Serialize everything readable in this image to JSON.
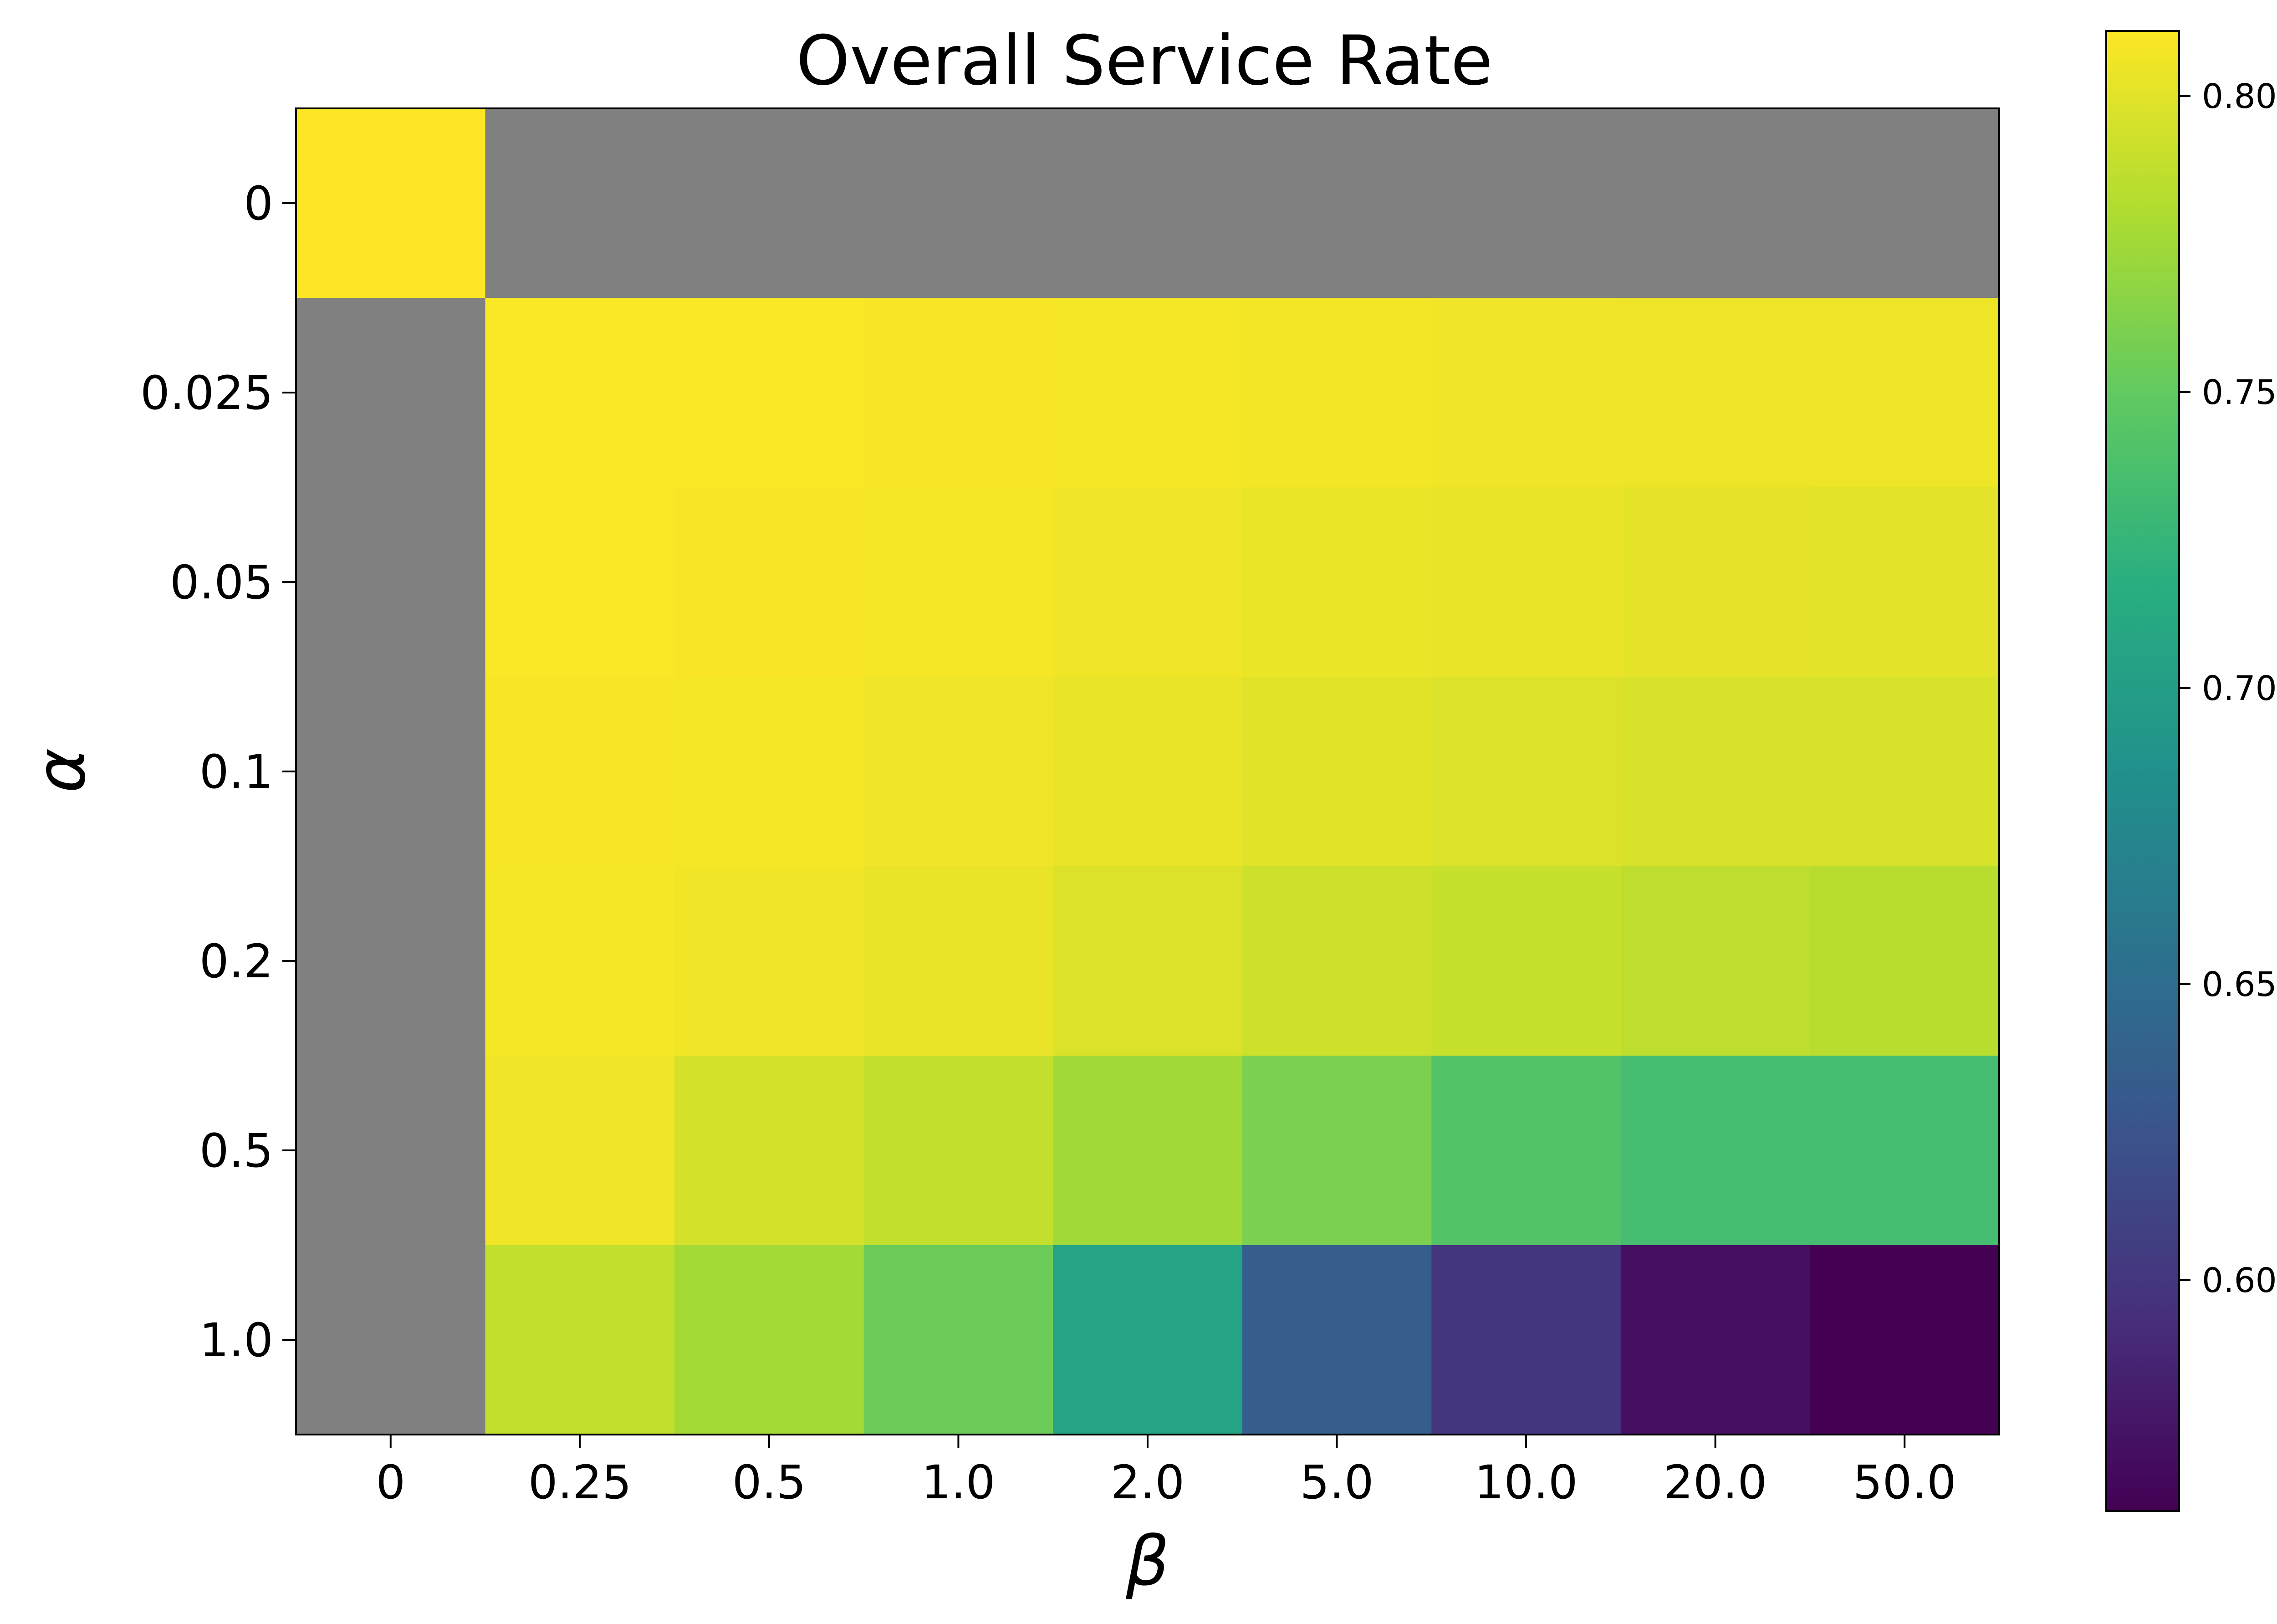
{
  "chart_data": {
    "type": "heatmap",
    "title": "Overall Service Rate",
    "xlabel": "β",
    "ylabel": "α",
    "x_categories": [
      "0",
      "0.25",
      "0.5",
      "1.0",
      "2.0",
      "5.0",
      "10.0",
      "20.0",
      "50.0"
    ],
    "y_categories": [
      "0",
      "0.025",
      "0.05",
      "0.1",
      "0.2",
      "0.5",
      "1.0"
    ],
    "values": [
      [
        0.811,
        null,
        null,
        null,
        null,
        null,
        null,
        null,
        null
      ],
      [
        null,
        0.81,
        0.81,
        0.809,
        0.808,
        0.807,
        0.806,
        0.805,
        0.805
      ],
      [
        null,
        0.81,
        0.809,
        0.808,
        0.806,
        0.804,
        0.803,
        0.802,
        0.801
      ],
      [
        null,
        0.809,
        0.808,
        0.806,
        0.803,
        0.8,
        0.798,
        0.797,
        0.796
      ],
      [
        null,
        0.808,
        0.806,
        0.803,
        0.798,
        0.792,
        0.79,
        0.786,
        0.784
      ],
      [
        null,
        0.806,
        0.795,
        0.788,
        0.775,
        0.76,
        0.742,
        0.734,
        0.734
      ],
      [
        null,
        0.788,
        0.776,
        0.754,
        0.705,
        0.635,
        0.598,
        0.572,
        0.561
      ]
    ],
    "missing_color": "#808080",
    "colormap": "viridis",
    "colorbar": {
      "min": 0.561,
      "max": 0.811,
      "ticks": [
        "0.60",
        "0.65",
        "0.70",
        "0.75",
        "0.80"
      ],
      "tick_values": [
        0.6,
        0.65,
        0.7,
        0.75,
        0.8
      ],
      "position": "right"
    }
  }
}
